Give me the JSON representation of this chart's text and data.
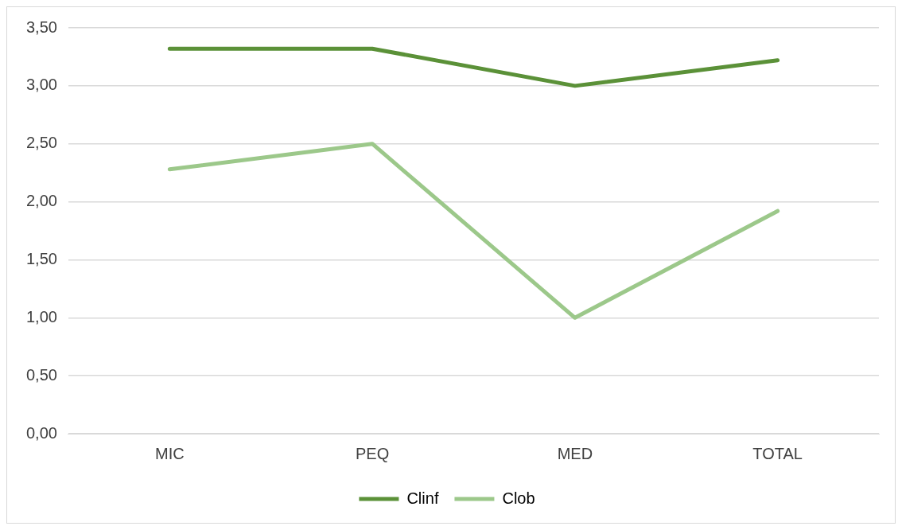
{
  "chart_data": {
    "type": "line",
    "categories": [
      "MIC",
      "PEQ",
      "MED",
      "TOTAL"
    ],
    "series": [
      {
        "name": "Clinf",
        "color": "#5b9138",
        "values": [
          3.32,
          3.32,
          3.0,
          3.22
        ]
      },
      {
        "name": "Clob",
        "color": "#9cc88a",
        "values": [
          2.28,
          2.5,
          1.0,
          1.92
        ]
      }
    ],
    "ylim": [
      0,
      3.5
    ],
    "yticks": [
      {
        "value": 0,
        "label": "0,00"
      },
      {
        "value": 0.5,
        "label": "0,50"
      },
      {
        "value": 1,
        "label": "1,00"
      },
      {
        "value": 1.5,
        "label": "1,50"
      },
      {
        "value": 2,
        "label": "2,00"
      },
      {
        "value": 2.5,
        "label": "2,50"
      },
      {
        "value": 3,
        "label": "3,00"
      },
      {
        "value": 3.5,
        "label": "3,50"
      }
    ],
    "grid": "y",
    "legend": "bottom",
    "marker": "none",
    "line_style": "solid"
  }
}
